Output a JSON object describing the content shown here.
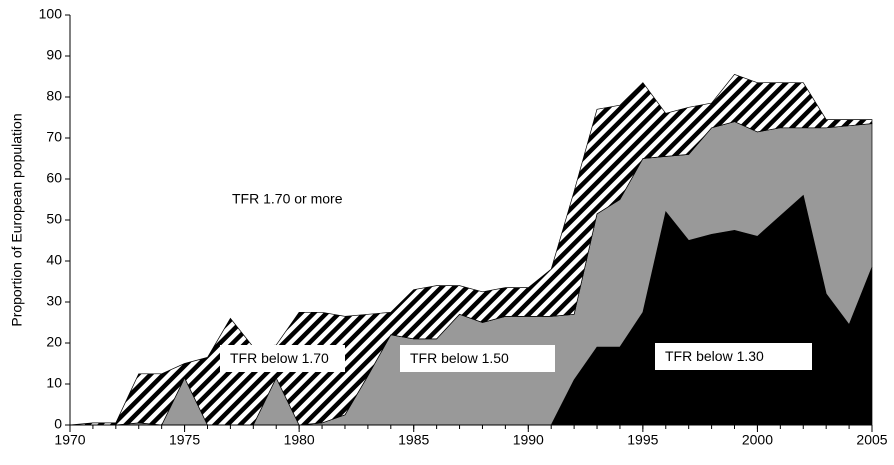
{
  "chart_data": {
    "type": "stacked_area",
    "ylabel": "Proportion of European population",
    "annotations": [
      "TFR 1.70 or more"
    ],
    "x": [
      1970,
      1971,
      1972,
      1973,
      1974,
      1975,
      1976,
      1977,
      1978,
      1979,
      1980,
      1981,
      1982,
      1983,
      1984,
      1985,
      1986,
      1987,
      1988,
      1989,
      1990,
      1991,
      1992,
      1993,
      1994,
      1995,
      1996,
      1997,
      1998,
      1999,
      2000,
      2001,
      2002,
      2003,
      2004,
      2005
    ],
    "series": [
      {
        "name": "TFR below 1.30",
        "color": "#000000",
        "values": [
          0,
          0,
          0,
          0,
          0,
          0,
          0,
          0,
          0,
          0,
          0,
          0,
          0,
          0,
          0,
          0,
          0,
          0,
          0,
          0,
          0,
          0,
          11,
          19,
          19,
          27.5,
          52,
          45,
          46.5,
          47.5,
          46,
          51,
          56,
          32,
          24.5,
          38.5
        ]
      },
      {
        "name": "TFR below 1.50",
        "color": "#999999",
        "values": [
          0,
          0,
          0,
          0.5,
          0,
          11.5,
          0,
          0,
          0,
          11.5,
          0,
          0.5,
          2.5,
          12,
          22,
          21,
          21,
          27,
          25,
          26.5,
          26.5,
          26.5,
          16,
          32.5,
          36,
          37.5,
          13.5,
          21,
          26,
          26.5,
          25.5,
          21.5,
          16.5,
          40.5,
          48.5,
          35
        ]
      },
      {
        "name": "TFR below 1.70",
        "color": "#000000",
        "hatch": true,
        "values": [
          0,
          0.5,
          0.5,
          12,
          12.5,
          3.5,
          16.5,
          26,
          19,
          8,
          27.5,
          27,
          24,
          15,
          5.5,
          12,
          13,
          7,
          7.5,
          7,
          7,
          11.5,
          30,
          25.5,
          23,
          18.5,
          10.5,
          11.5,
          6,
          11.5,
          12,
          11,
          11,
          2,
          1.5,
          1
        ]
      }
    ],
    "xlim": [
      1970,
      2005
    ],
    "xticks": [
      1970,
      1975,
      1980,
      1985,
      1990,
      1995,
      2000,
      2005
    ],
    "ylim": [
      0,
      100
    ],
    "yticks": [
      0,
      10,
      20,
      30,
      40,
      50,
      60,
      70,
      80,
      90,
      100
    ],
    "grid": false
  }
}
